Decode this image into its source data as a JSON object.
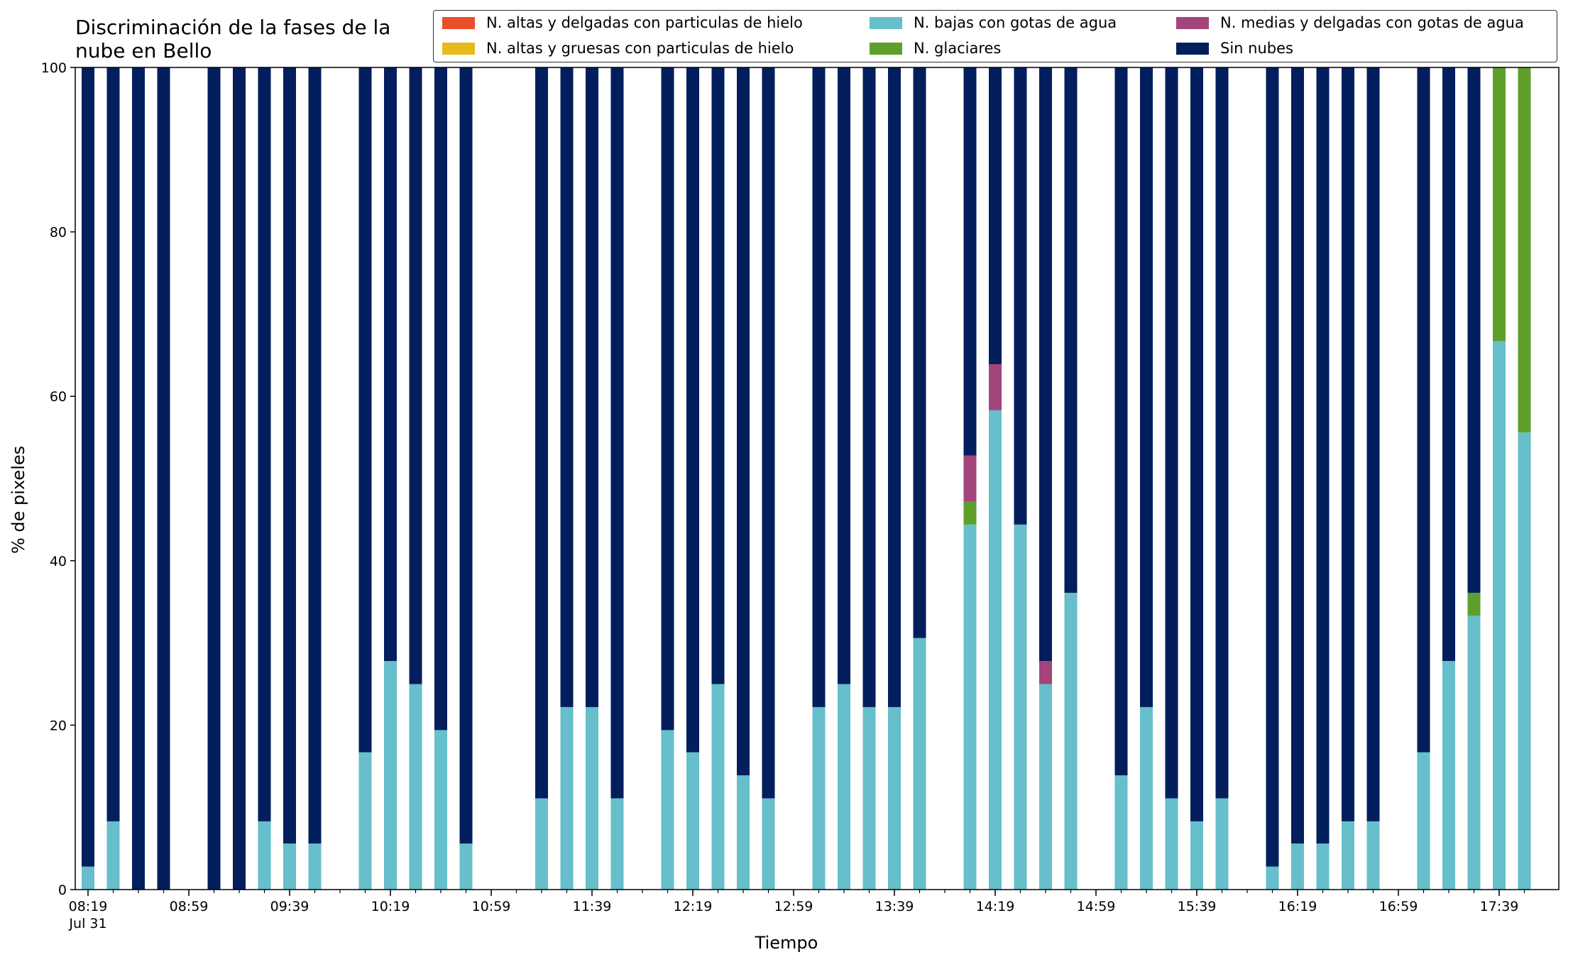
{
  "chart_data": {
    "type": "bar",
    "stacked": true,
    "title": "Discriminación de la fases de la nube en Bello",
    "xlabel": "Tiempo",
    "ylabel": "% de pixeles",
    "ylim": [
      0,
      100
    ],
    "yticks": [
      0,
      20,
      40,
      60,
      80,
      100
    ],
    "xtick_labels": [
      "08:19\nJul 31",
      "08:59",
      "09:39",
      "10:19",
      "10:59",
      "11:39",
      "12:19",
      "12:59",
      "13:39",
      "14:19",
      "14:59",
      "15:39",
      "16:19",
      "16:59",
      "17:39"
    ],
    "legend_position": "top",
    "x": [
      "08:19",
      "08:29",
      "08:39",
      "08:49",
      "08:59",
      "09:09",
      "09:19",
      "09:29",
      "09:39",
      "09:49",
      "09:59",
      "10:09",
      "10:19",
      "10:29",
      "10:39",
      "10:49",
      "10:59",
      "11:09",
      "11:19",
      "11:29",
      "11:39",
      "11:49",
      "11:59",
      "12:09",
      "12:19",
      "12:29",
      "12:39",
      "12:49",
      "12:59",
      "13:09",
      "13:19",
      "13:29",
      "13:39",
      "13:49",
      "13:59",
      "14:09",
      "14:19",
      "14:29",
      "14:39",
      "14:49",
      "14:59",
      "15:09",
      "15:19",
      "15:29",
      "15:39",
      "15:49",
      "15:59",
      "16:09",
      "16:19",
      "16:29",
      "16:39",
      "16:49",
      "16:59",
      "17:09",
      "17:19",
      "17:29",
      "17:39",
      "17:49"
    ],
    "series": [
      {
        "name": "N. altas y delgadas con particulas de hielo",
        "color": "#e8502c",
        "values": [
          0,
          0,
          0,
          0,
          0,
          0,
          0,
          0,
          0,
          0,
          0,
          0,
          0,
          0,
          0,
          0,
          0,
          0,
          0,
          0,
          0,
          0,
          0,
          0,
          0,
          0,
          0,
          0,
          0,
          0,
          0,
          0,
          0,
          0,
          0,
          0,
          0,
          0,
          0,
          0,
          0,
          0,
          0,
          0,
          0,
          0,
          0,
          0,
          0,
          0,
          0,
          0,
          0,
          0,
          0,
          0,
          0,
          0
        ]
      },
      {
        "name": "N. altas y gruesas con particulas de hielo",
        "color": "#e6ba1d",
        "values": [
          0,
          0,
          0,
          0,
          0,
          0,
          0,
          0,
          0,
          0,
          0,
          0,
          0,
          0,
          0,
          0,
          0,
          0,
          0,
          0,
          0,
          0,
          0,
          0,
          0,
          0,
          0,
          0,
          0,
          0,
          0,
          0,
          0,
          0,
          0,
          0,
          0,
          0,
          0,
          0,
          0,
          0,
          0,
          0,
          0,
          0,
          0,
          0,
          0,
          0,
          0,
          0,
          0,
          0,
          0,
          0,
          0,
          0
        ]
      },
      {
        "name": "N. bajas con gotas de agua",
        "color": "#66bfcb",
        "values": [
          2.8,
          8.3,
          0,
          0,
          null,
          0,
          0,
          8.3,
          5.6,
          5.6,
          null,
          16.7,
          27.8,
          25,
          19.4,
          5.6,
          null,
          null,
          11.1,
          22.2,
          22.2,
          11.1,
          null,
          19.4,
          16.7,
          25,
          13.9,
          11.1,
          null,
          22.2,
          25,
          22.2,
          22.2,
          30.6,
          null,
          44.4,
          58.3,
          44.4,
          25,
          36.1,
          null,
          13.9,
          22.2,
          11.1,
          8.3,
          11.1,
          null,
          2.8,
          5.6,
          5.6,
          8.3,
          8.3,
          null,
          16.7,
          27.8,
          33.3,
          66.7,
          55.6
        ]
      },
      {
        "name": "N. glaciares",
        "color": "#5e9f2c",
        "values": [
          0,
          0,
          0,
          0,
          null,
          0,
          0,
          0,
          0,
          0,
          null,
          0,
          0,
          0,
          0,
          0,
          null,
          null,
          0,
          0,
          0,
          0,
          null,
          0,
          0,
          0,
          0,
          0,
          null,
          0,
          0,
          0,
          0,
          0,
          null,
          2.8,
          0,
          0,
          0,
          0,
          null,
          0,
          0,
          0,
          0,
          0,
          null,
          0,
          0,
          0,
          0,
          0,
          null,
          0,
          0,
          2.8,
          33.3,
          44.4
        ]
      },
      {
        "name": "N. medias y delgadas con gotas de agua",
        "color": "#a2457a",
        "values": [
          0,
          0,
          0,
          0,
          null,
          0,
          0,
          0,
          0,
          0,
          null,
          0,
          0,
          0,
          0,
          0,
          null,
          null,
          0,
          0,
          0,
          0,
          null,
          0,
          0,
          0,
          0,
          0,
          null,
          0,
          0,
          0,
          0,
          0,
          null,
          5.6,
          5.6,
          0,
          2.8,
          0,
          null,
          0,
          0,
          0,
          0,
          0,
          null,
          0,
          0,
          0,
          0,
          0,
          null,
          0,
          0,
          0,
          0,
          0
        ]
      },
      {
        "name": "Sin nubes",
        "color": "#021e5c",
        "values": [
          97.2,
          91.7,
          100,
          100,
          null,
          100,
          100,
          91.7,
          94.4,
          94.4,
          null,
          83.3,
          72.2,
          75,
          80.6,
          94.4,
          null,
          null,
          88.9,
          77.8,
          77.8,
          88.9,
          null,
          80.6,
          83.3,
          75,
          86.1,
          88.9,
          null,
          77.8,
          75,
          77.8,
          77.8,
          69.4,
          null,
          47.2,
          36.1,
          55.6,
          72.2,
          63.9,
          null,
          86.1,
          77.8,
          88.9,
          91.7,
          88.9,
          null,
          97.2,
          94.4,
          94.4,
          91.7,
          91.7,
          null,
          83.3,
          72.2,
          63.9,
          0,
          0
        ]
      }
    ]
  }
}
